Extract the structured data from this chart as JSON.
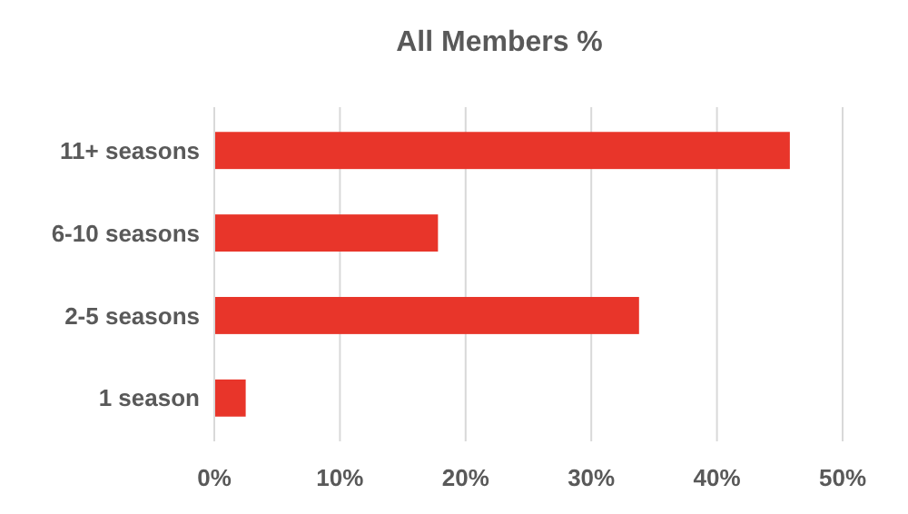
{
  "chart_data": {
    "type": "bar",
    "orientation": "horizontal",
    "title": "All Members %",
    "categories": [
      "11+ seasons",
      "6-10 seasons",
      "2-5 seasons",
      "1 season"
    ],
    "values": [
      45.8,
      17.8,
      33.8,
      2.5
    ],
    "color": "#e8352a",
    "xlim": [
      0,
      50
    ],
    "xticks": [
      {
        "value": 0,
        "label": "0%"
      },
      {
        "value": 10,
        "label": "10%"
      },
      {
        "value": 20,
        "label": "20%"
      },
      {
        "value": 30,
        "label": "30%"
      },
      {
        "value": 40,
        "label": "40%"
      },
      {
        "value": 50,
        "label": "50%"
      }
    ],
    "grid": "x"
  }
}
